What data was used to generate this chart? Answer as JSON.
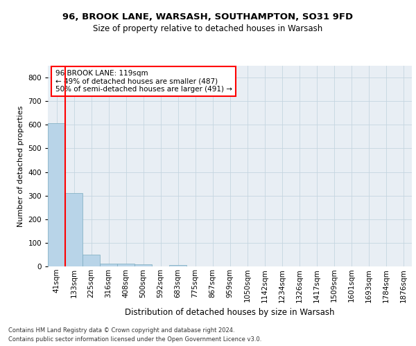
{
  "title_line1": "96, BROOK LANE, WARSASH, SOUTHAMPTON, SO31 9FD",
  "title_line2": "Size of property relative to detached houses in Warsash",
  "xlabel": "Distribution of detached houses by size in Warsash",
  "ylabel": "Number of detached properties",
  "footer_line1": "Contains HM Land Registry data © Crown copyright and database right 2024.",
  "footer_line2": "Contains public sector information licensed under the Open Government Licence v3.0.",
  "categories": [
    "41sqm",
    "133sqm",
    "225sqm",
    "316sqm",
    "408sqm",
    "500sqm",
    "592sqm",
    "683sqm",
    "775sqm",
    "867sqm",
    "959sqm",
    "1050sqm",
    "1142sqm",
    "1234sqm",
    "1326sqm",
    "1417sqm",
    "1509sqm",
    "1601sqm",
    "1693sqm",
    "1784sqm",
    "1876sqm"
  ],
  "values": [
    608,
    310,
    50,
    12,
    12,
    8,
    0,
    7,
    0,
    0,
    0,
    0,
    0,
    0,
    0,
    0,
    0,
    0,
    0,
    0,
    0
  ],
  "bar_color": "#b8d4e8",
  "bar_edge_color": "#7aaabf",
  "annotation_text": "96 BROOK LANE: 119sqm\n← 49% of detached houses are smaller (487)\n50% of semi-detached houses are larger (491) →",
  "annotation_box_color": "white",
  "annotation_box_edge_color": "red",
  "property_line_x": 1,
  "property_line_color": "red",
  "ylim": [
    0,
    850
  ],
  "yticks": [
    0,
    100,
    200,
    300,
    400,
    500,
    600,
    700,
    800
  ],
  "background_color": "#e8eef4",
  "plot_background": "white",
  "title_fontsize": 9.5,
  "subtitle_fontsize": 8.5,
  "ylabel_fontsize": 8,
  "xlabel_fontsize": 8.5,
  "tick_fontsize": 7.5,
  "footer_fontsize": 6.0
}
